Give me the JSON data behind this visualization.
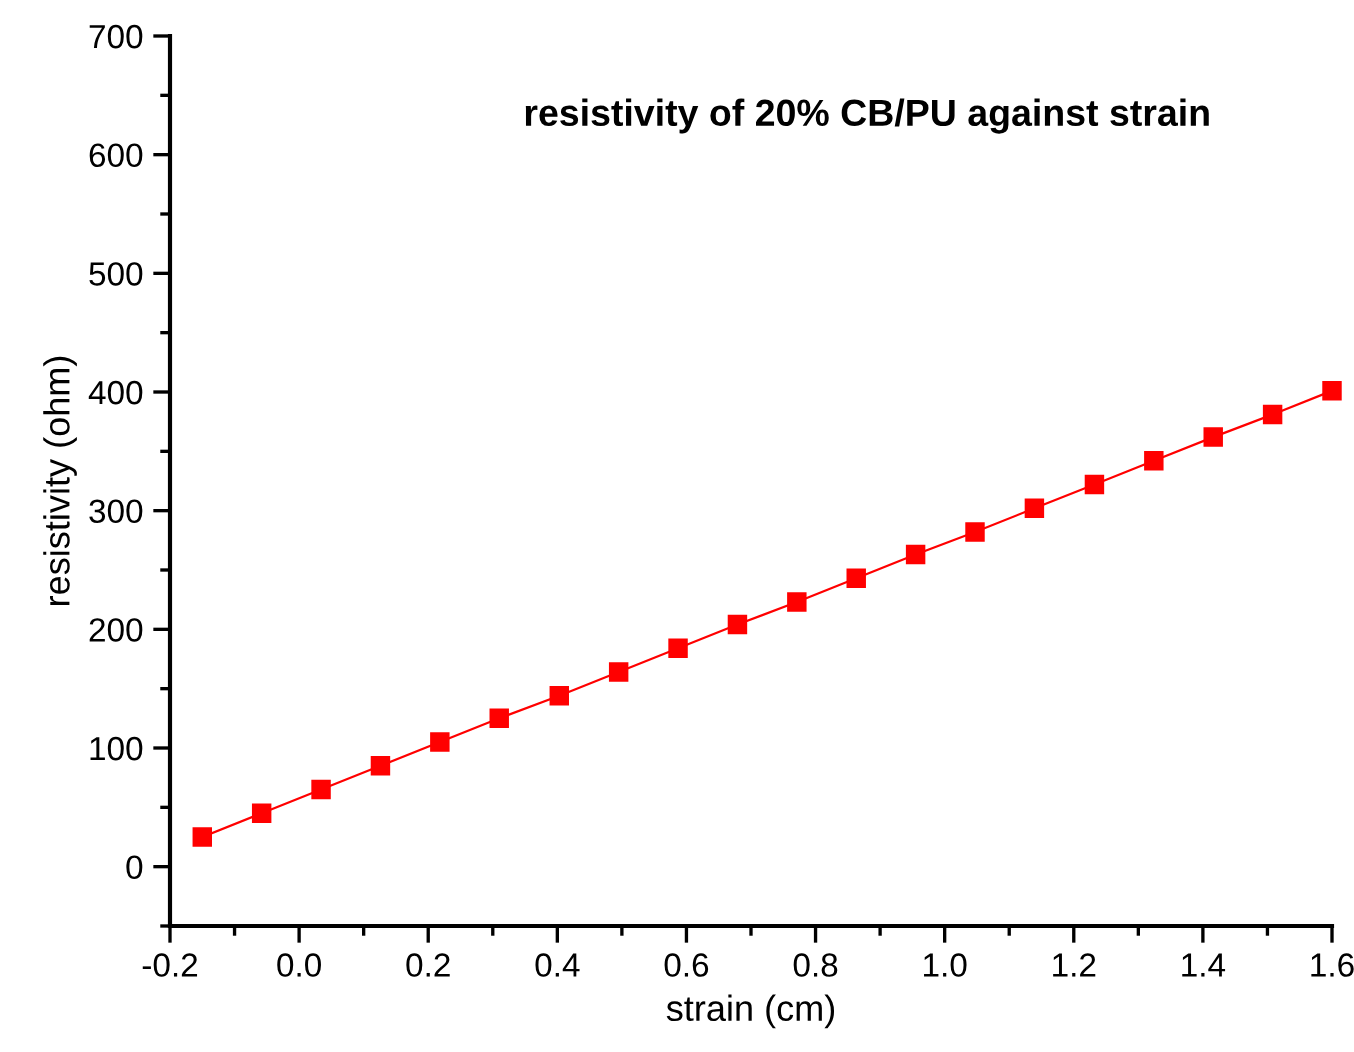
{
  "chart_data": {
    "type": "line",
    "title": "resistivity of 20% CB/PU against strain",
    "xlabel": "strain (cm)",
    "ylabel": "resistivity (ohm)",
    "x": [
      -0.15,
      -0.058,
      0.034,
      0.126,
      0.218,
      0.31,
      0.403,
      0.495,
      0.587,
      0.679,
      0.771,
      0.863,
      0.955,
      1.047,
      1.139,
      1.232,
      1.324,
      1.416,
      1.508,
      1.6
    ],
    "series": [
      {
        "color": "#ff0000",
        "values": [
          25,
          45,
          65,
          85,
          105,
          125,
          144,
          164,
          184,
          204,
          223,
          243,
          263,
          282,
          302,
          322,
          342,
          362,
          381,
          401
        ]
      }
    ],
    "marker": "square",
    "line_style": "solid",
    "grid": false,
    "legend": false,
    "xlim": [
      -0.2,
      1.6
    ],
    "xticks": [
      {
        "value": -0.2,
        "label": "-0.2"
      },
      {
        "value": 0,
        "label": "0.0"
      },
      0.2,
      0.4,
      0.6,
      0.8,
      {
        "value": 1,
        "label": "1.0"
      },
      1.2,
      1.4,
      1.6
    ],
    "ylim": [
      -50,
      700
    ],
    "yticks": [
      0,
      100,
      200,
      300,
      400,
      500,
      600,
      700
    ]
  }
}
